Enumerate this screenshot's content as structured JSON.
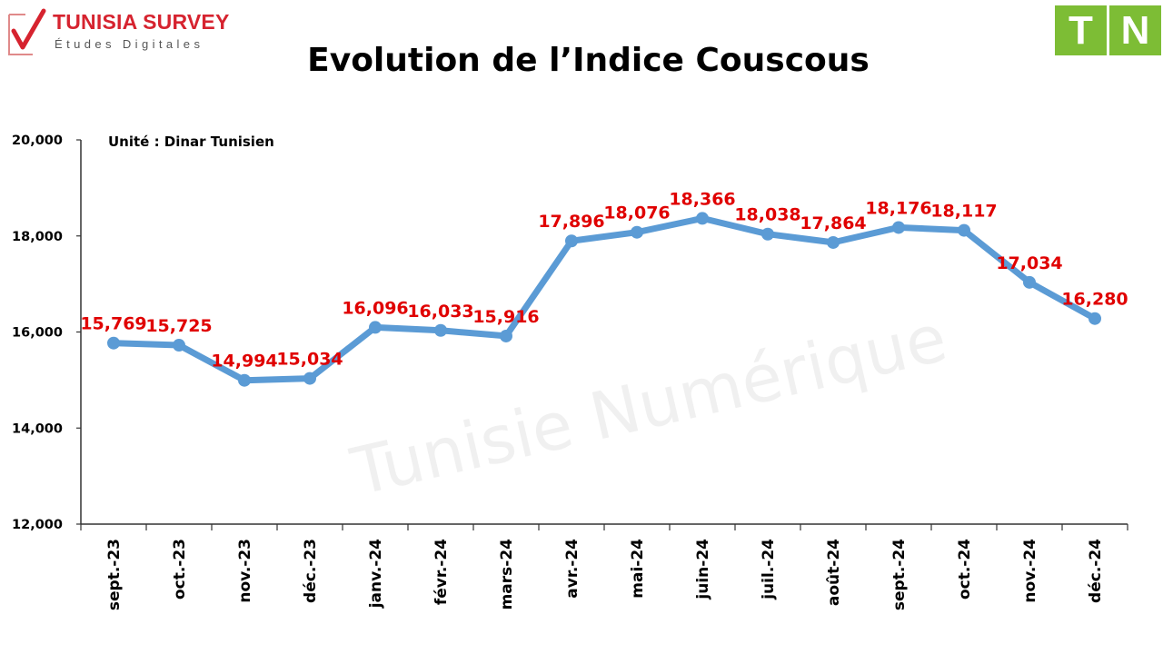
{
  "header": {
    "logo_name": "TUNISIA SURVEY",
    "logo_tagline": "Études Digitales",
    "badge_letters": [
      "T",
      "N"
    ]
  },
  "colors": {
    "brand_red": "#d6232f",
    "badge_green": "#7dbd35",
    "series_blue": "#5b9bd5",
    "data_label_red": "#e00000"
  },
  "watermark": "Tunisie Numérique",
  "chart_data": {
    "type": "line",
    "title": "Evolution de l’Indice Couscous",
    "annotation": "Unité : Dinar Tunisien",
    "xlabel": "",
    "ylabel": "",
    "ylim": [
      12000,
      20000
    ],
    "yticks": [
      12000,
      14000,
      16000,
      18000,
      20000
    ],
    "ytick_labels": [
      "12,000",
      "14,000",
      "16,000",
      "18,000",
      "20,000"
    ],
    "grid": false,
    "legend": "none",
    "categories": [
      "sept.-23",
      "oct.-23",
      "nov.-23",
      "déc.-23",
      "janv.-24",
      "févr.-24",
      "mars-24",
      "avr.-24",
      "mai-24",
      "juin-24",
      "juil.-24",
      "août-24",
      "sept.-24",
      "oct.-24",
      "nov.-24",
      "déc.-24"
    ],
    "values": [
      15769,
      15725,
      14994,
      15034,
      16096,
      16033,
      15916,
      17896,
      18076,
      18366,
      18038,
      17864,
      18176,
      18117,
      17034,
      16280
    ],
    "value_labels": [
      "15,769",
      "15,725",
      "14,994",
      "15,034",
      "16,096",
      "16,033",
      "15,916",
      "17,896",
      "18,076",
      "18,366",
      "18,038",
      "17,864",
      "18,176",
      "18,117",
      "17,034",
      "16,280"
    ]
  }
}
